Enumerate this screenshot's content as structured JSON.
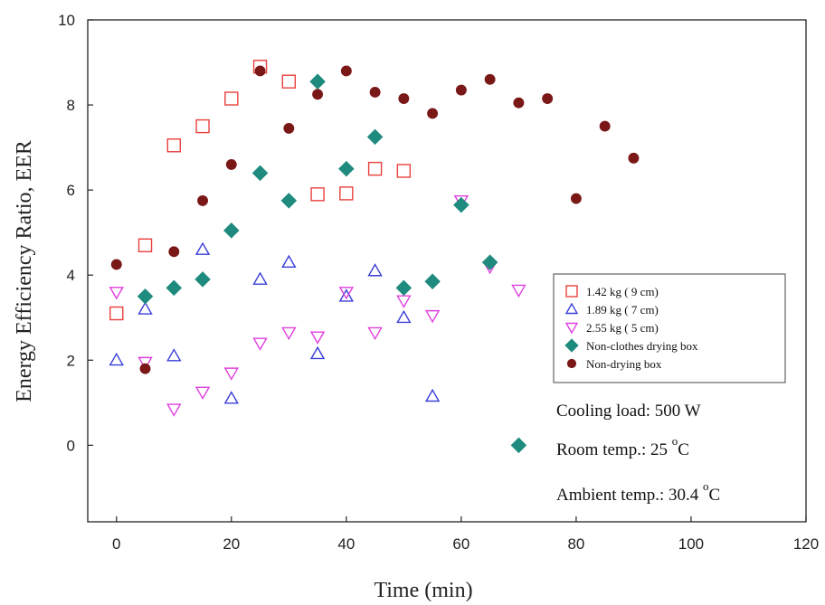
{
  "chart_data": {
    "type": "scatter",
    "xlabel": "Time (min)",
    "ylabel": "Energy Efficiency Ratio, EER",
    "xlim": [
      -5,
      120
    ],
    "ylim": [
      -1.8,
      10
    ],
    "xticks": [
      0,
      20,
      40,
      60,
      80,
      100,
      120
    ],
    "yticks": [
      0,
      2,
      4,
      6,
      8,
      10
    ],
    "grid": false,
    "legend_position": "right",
    "series": [
      {
        "name": "1.42 kg ( 9 cm)",
        "marker": "square-open",
        "color": "#e8413c",
        "x": [
          0,
          5,
          10,
          15,
          20,
          25,
          30,
          35,
          40,
          45,
          50
        ],
        "y": [
          3.1,
          4.7,
          7.05,
          7.5,
          8.15,
          8.9,
          8.55,
          5.9,
          5.92,
          6.5,
          6.45
        ]
      },
      {
        "name": "1.89 kg ( 7 cm)",
        "marker": "triangle-up-open",
        "color": "#3a3fd8",
        "x": [
          0,
          5,
          10,
          15,
          20,
          25,
          30,
          35,
          40,
          45,
          50,
          55
        ],
        "y": [
          2.0,
          3.2,
          2.1,
          4.6,
          1.1,
          3.9,
          4.3,
          2.15,
          3.5,
          4.1,
          3.0,
          1.15
        ]
      },
      {
        "name": "2.55 kg ( 5 cm)",
        "marker": "triangle-down-open",
        "color": "#e040e0",
        "x": [
          0,
          5,
          10,
          15,
          20,
          25,
          30,
          35,
          40,
          45,
          50,
          55,
          60,
          65,
          70
        ],
        "y": [
          3.6,
          1.95,
          0.85,
          1.25,
          1.7,
          2.4,
          2.65,
          2.55,
          3.6,
          2.65,
          3.4,
          3.05,
          5.75,
          4.2,
          3.65
        ]
      },
      {
        "name": "Non-clothes drying box",
        "marker": "diamond-filled",
        "color": "#1f8a7e",
        "x": [
          5,
          10,
          15,
          20,
          25,
          30,
          35,
          40,
          45,
          50,
          55,
          60,
          65,
          70
        ],
        "y": [
          3.5,
          3.7,
          3.9,
          5.05,
          6.4,
          5.75,
          8.55,
          6.5,
          7.25,
          3.7,
          3.85,
          5.65,
          4.3,
          0.0
        ]
      },
      {
        "name": "Non-drying box",
        "marker": "circle-filled",
        "color": "#7a1818",
        "x": [
          0,
          5,
          10,
          15,
          20,
          25,
          30,
          35,
          40,
          45,
          50,
          55,
          60,
          65,
          70,
          75,
          80,
          85,
          90
        ],
        "y": [
          4.25,
          1.8,
          4.55,
          5.75,
          6.6,
          8.8,
          7.45,
          8.25,
          8.8,
          8.3,
          8.15,
          7.8,
          8.35,
          8.6,
          8.05,
          8.15,
          5.8,
          7.5,
          6.75
        ]
      }
    ],
    "annotations": [
      {
        "text": "Cooling load: 500 W",
        "sup": "",
        "tail": ""
      },
      {
        "text": "Room temp.: 25 ",
        "sup": "o",
        "tail": "C"
      },
      {
        "text": "Ambient temp.: 30.4 ",
        "sup": "o",
        "tail": "C"
      }
    ]
  }
}
